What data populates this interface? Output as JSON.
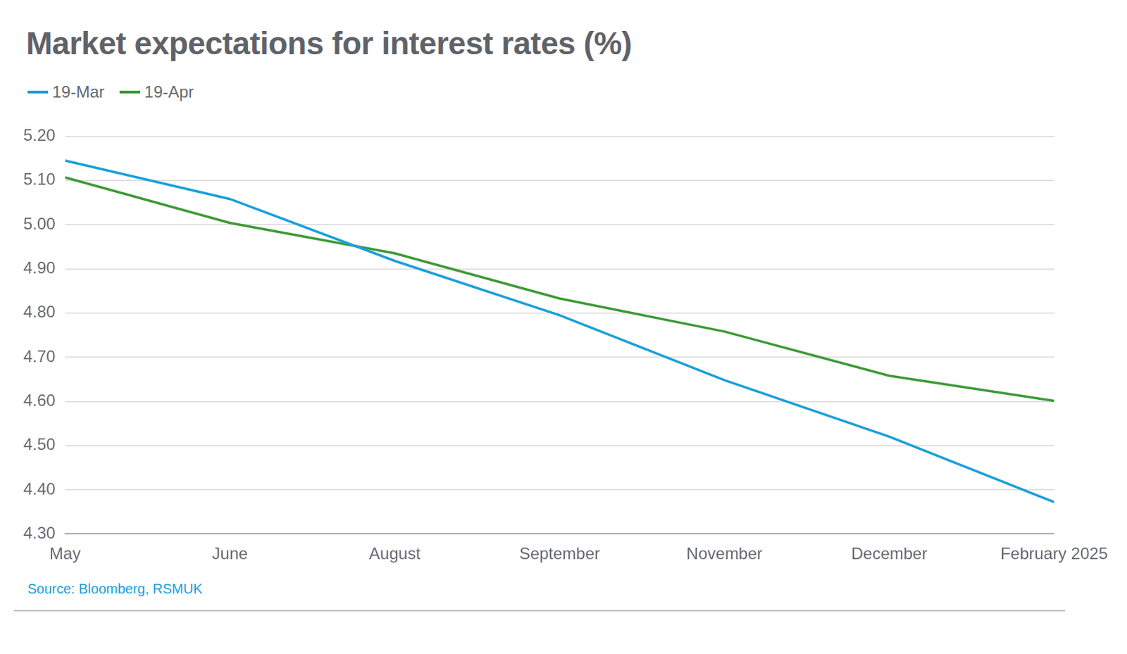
{
  "chart_data": {
    "type": "line",
    "title": "Market expectations for interest rates (%)",
    "source": "Source: Bloomberg, RSMUK",
    "categories": [
      "May",
      "June",
      "August",
      "September",
      "November",
      "December",
      "February 2025"
    ],
    "series": [
      {
        "name": "19-Mar",
        "color": "#1a9fdc",
        "values": [
          5.145,
          5.058,
          4.918,
          4.795,
          4.648,
          4.52,
          4.372
        ]
      },
      {
        "name": "19-Apr",
        "color": "#3d9a36",
        "values": [
          5.107,
          5.004,
          4.935,
          4.833,
          4.758,
          4.658,
          4.601
        ]
      }
    ],
    "ylim": [
      4.3,
      5.2
    ],
    "yticks": [
      {
        "value": 4.3,
        "label": "4.30"
      },
      {
        "value": 4.4,
        "label": "4.40"
      },
      {
        "value": 4.5,
        "label": "4.50"
      },
      {
        "value": 4.6,
        "label": "4.60"
      },
      {
        "value": 4.7,
        "label": "4.70"
      },
      {
        "value": 4.8,
        "label": "4.80"
      },
      {
        "value": 4.9,
        "label": "4.90"
      },
      {
        "value": 5,
        "label": "5.00"
      },
      {
        "value": 5.1,
        "label": "5.10"
      },
      {
        "value": 5.2,
        "label": "5.20"
      }
    ],
    "grid": true,
    "legend": "top-left"
  }
}
